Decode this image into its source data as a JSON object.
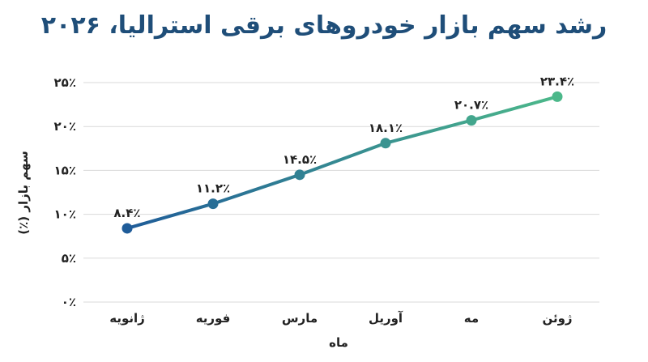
{
  "chart_data": {
    "type": "line",
    "title": "رشد سهم بازار خودروهای برقی استرالیا، ۲۰۲۶",
    "xlabel": "ماه",
    "ylabel": "سهم بازار (٪)",
    "categories": [
      "ژانویه",
      "فوریه",
      "مارس",
      "آوریل",
      "مه",
      "ژوئن"
    ],
    "series": [
      {
        "values": [
          8.4,
          11.2,
          14.5,
          18.1,
          20.7,
          23.4
        ]
      }
    ],
    "data_labels": [
      "۸.۴٪",
      "۱۱.۲٪",
      "۱۴.۵٪",
      "۱۸.۱٪",
      "۲۰.۷٪",
      "۲۳.۴٪"
    ],
    "ylim": [
      0,
      25
    ],
    "yticks": [
      0,
      5,
      10,
      15,
      20,
      25
    ],
    "ytick_labels": [
      "۰٪",
      "۵٪",
      "۱۰٪",
      "۱۵٪",
      "۲۰٪",
      "۲۵٪"
    ],
    "grid": true,
    "colors": {
      "start": "#1f5c99",
      "end": "#4cb88a",
      "title": "#1f4e79",
      "grid": "#d9d9d9"
    }
  }
}
